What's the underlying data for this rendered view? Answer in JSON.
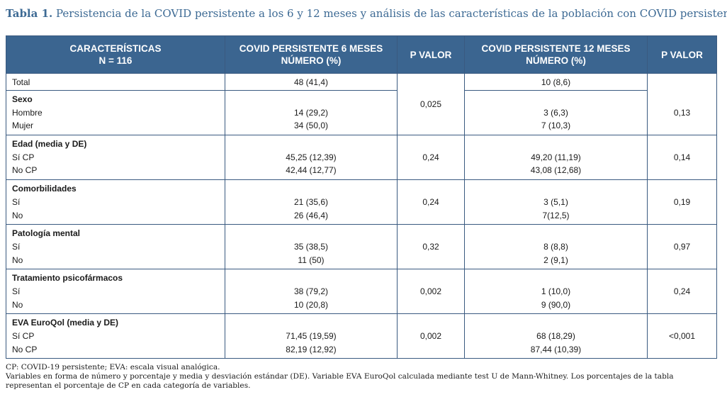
{
  "caption": {
    "label": "Tabla 1.",
    "text": "Persistencia de la COVID persistente a los 6 y 12 meses y análisis de las características de la población con COVID persistente"
  },
  "headers": {
    "col1": [
      "CARACTERÍSTICAS",
      "N = 116"
    ],
    "col2": [
      "COVID PERSISTENTE 6 MESES",
      "NÚMERO (%)"
    ],
    "col3": [
      "P VALOR"
    ],
    "col4": [
      "COVID PERSISTENTE 12 MESES",
      "NÚMERO (%)"
    ],
    "col5": [
      "P VALOR"
    ]
  },
  "total": {
    "label": "Total",
    "m6": "48 (41,4)",
    "m12": "10 (8,6)"
  },
  "groups": [
    {
      "title": "Sexo",
      "rows": [
        {
          "label": "Hombre",
          "m6": "14 (29,2)",
          "m12": "3 (6,3)"
        },
        {
          "label": "Mujer",
          "m6": "34 (50,0)",
          "m12": "7 (10,3)"
        }
      ],
      "p6": "0,025",
      "p12": "0,13"
    },
    {
      "title": "Edad (media y DE)",
      "rows": [
        {
          "label": "Sí CP",
          "m6": "45,25 (12,39)",
          "m12": "49,20 (11,19)"
        },
        {
          "label": "No CP",
          "m6": "42,44 (12,77)",
          "m12": "43,08 (12,68)"
        }
      ],
      "p6": "0,24",
      "p12": "0,14"
    },
    {
      "title": "Comorbilidades",
      "rows": [
        {
          "label": "Sí",
          "m6": "21 (35,6)",
          "m12": "3 (5,1)"
        },
        {
          "label": "No",
          "m6": "26 (46,4)",
          "m12": "7(12,5)"
        }
      ],
      "p6": "0,24",
      "p12": "0,19"
    },
    {
      "title": "Patología mental",
      "rows": [
        {
          "label": "Sí",
          "m6": "35 (38,5)",
          "m12": "8 (8,8)"
        },
        {
          "label": "No",
          "m6": "11 (50)",
          "m12": "2 (9,1)"
        }
      ],
      "p6": "0,32",
      "p12": "0,97"
    },
    {
      "title": "Tratamiento psicofármacos",
      "rows": [
        {
          "label": "Sí",
          "m6": "38 (79,2)",
          "m12": "1 (10,0)"
        },
        {
          "label": "No",
          "m6": "10 (20,8)",
          "m12": "9 (90,0)"
        }
      ],
      "p6": "0,002",
      "p12": "0,24"
    },
    {
      "title": "EVA EuroQol (media y DE)",
      "rows": [
        {
          "label": "Sí CP",
          "m6": "71,45 (19,59)",
          "m12": "68 (18,29)"
        },
        {
          "label": "No CP",
          "m6": "82,19 (12,92)",
          "m12": "87,44 (10,39)"
        }
      ],
      "p6": "0,002",
      "p12": "<0,001"
    }
  ],
  "notes": [
    "CP: COVID-19 persistente; EVA: escala visual analógica.",
    "Variables en forma de número y porcentaje y media y desviación estándar (DE). Variable EVA EuroQol calculada mediante test U de Mann-Whitney. Los porcentajes de la tabla",
    "representan el porcentaje de CP en cada categoría de variables."
  ]
}
